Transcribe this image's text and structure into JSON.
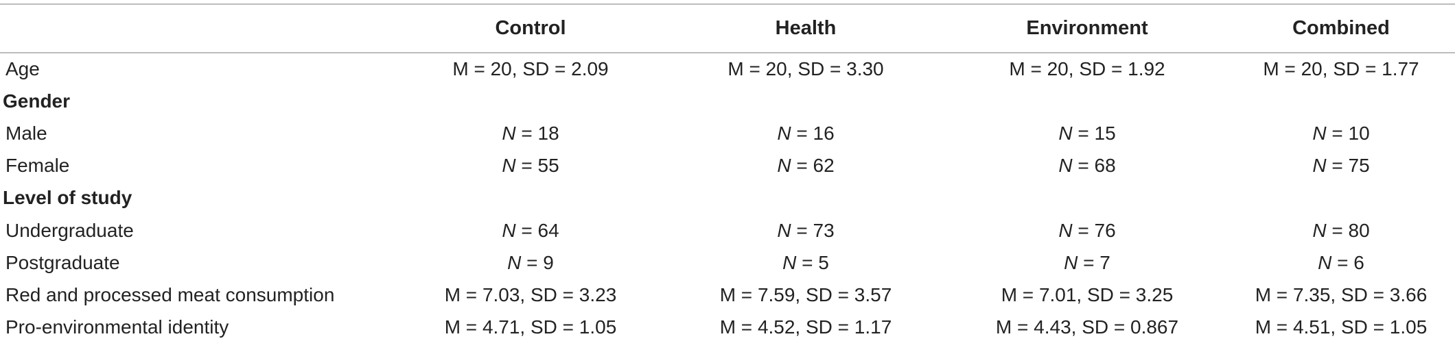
{
  "header": {
    "col0": "",
    "col1": "Control",
    "col2": "Health",
    "col3": "Environment",
    "col4": "Combined"
  },
  "rows": [
    {
      "type": "data",
      "label": "Age",
      "values": [
        "M = 20, SD = 2.09",
        "M = 20, SD = 3.30",
        "M = 20, SD = 1.92",
        "M = 20, SD = 1.77"
      ]
    },
    {
      "type": "section",
      "label": "Gender"
    },
    {
      "type": "data",
      "label": "Male",
      "values": [
        "= 18",
        "= 16",
        "= 15",
        "= 10"
      ]
    },
    {
      "type": "data",
      "label": "Female",
      "values": [
        "= 55",
        "= 62",
        "= 68",
        "= 75"
      ]
    },
    {
      "type": "section",
      "label": "Level of study"
    },
    {
      "type": "data",
      "label": "Undergraduate",
      "values": [
        "= 64",
        "= 73",
        "= 76",
        "= 80"
      ]
    },
    {
      "type": "data",
      "label": "Postgraduate",
      "values": [
        "= 9",
        "= 5",
        "= 7",
        "= 6"
      ]
    },
    {
      "type": "data",
      "label": "Red and processed meat consumption",
      "values": [
        "M = 7.03, SD = 3.23",
        "M = 7.59, SD = 3.57",
        "M = 7.01, SD = 3.25",
        "M = 7.35, SD = 3.66"
      ]
    },
    {
      "type": "data",
      "label": "Pro-environmental identity",
      "values": [
        "M = 4.71, SD = 1.05",
        "M = 4.52, SD = 1.17",
        "M = 4.43, SD = 0.867",
        "M = 4.51, SD = 1.05"
      ]
    }
  ],
  "n_symbol": "N"
}
